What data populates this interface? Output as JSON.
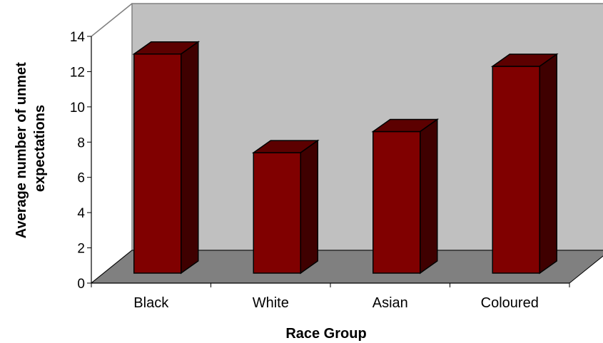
{
  "chart_data": {
    "type": "bar",
    "categories": [
      "Black",
      "White",
      "Asian",
      "Coloured"
    ],
    "values": [
      13.0,
      7.4,
      8.6,
      12.3
    ],
    "title": "",
    "xlabel": "Race Group",
    "ylabel_lines": [
      "Average number of unmet",
      "expectations"
    ],
    "ylim": [
      0,
      14
    ],
    "yticks": [
      "0",
      "2",
      "4",
      "6",
      "8",
      "10",
      "12",
      "14"
    ],
    "three_d": true,
    "grid": false,
    "legend": "none",
    "colors": {
      "bar_front": "#800000",
      "bar_top": "#5c0000",
      "bar_side": "#3f0000",
      "back_wall": "#c0c0c0",
      "floor": "#808080"
    }
  }
}
